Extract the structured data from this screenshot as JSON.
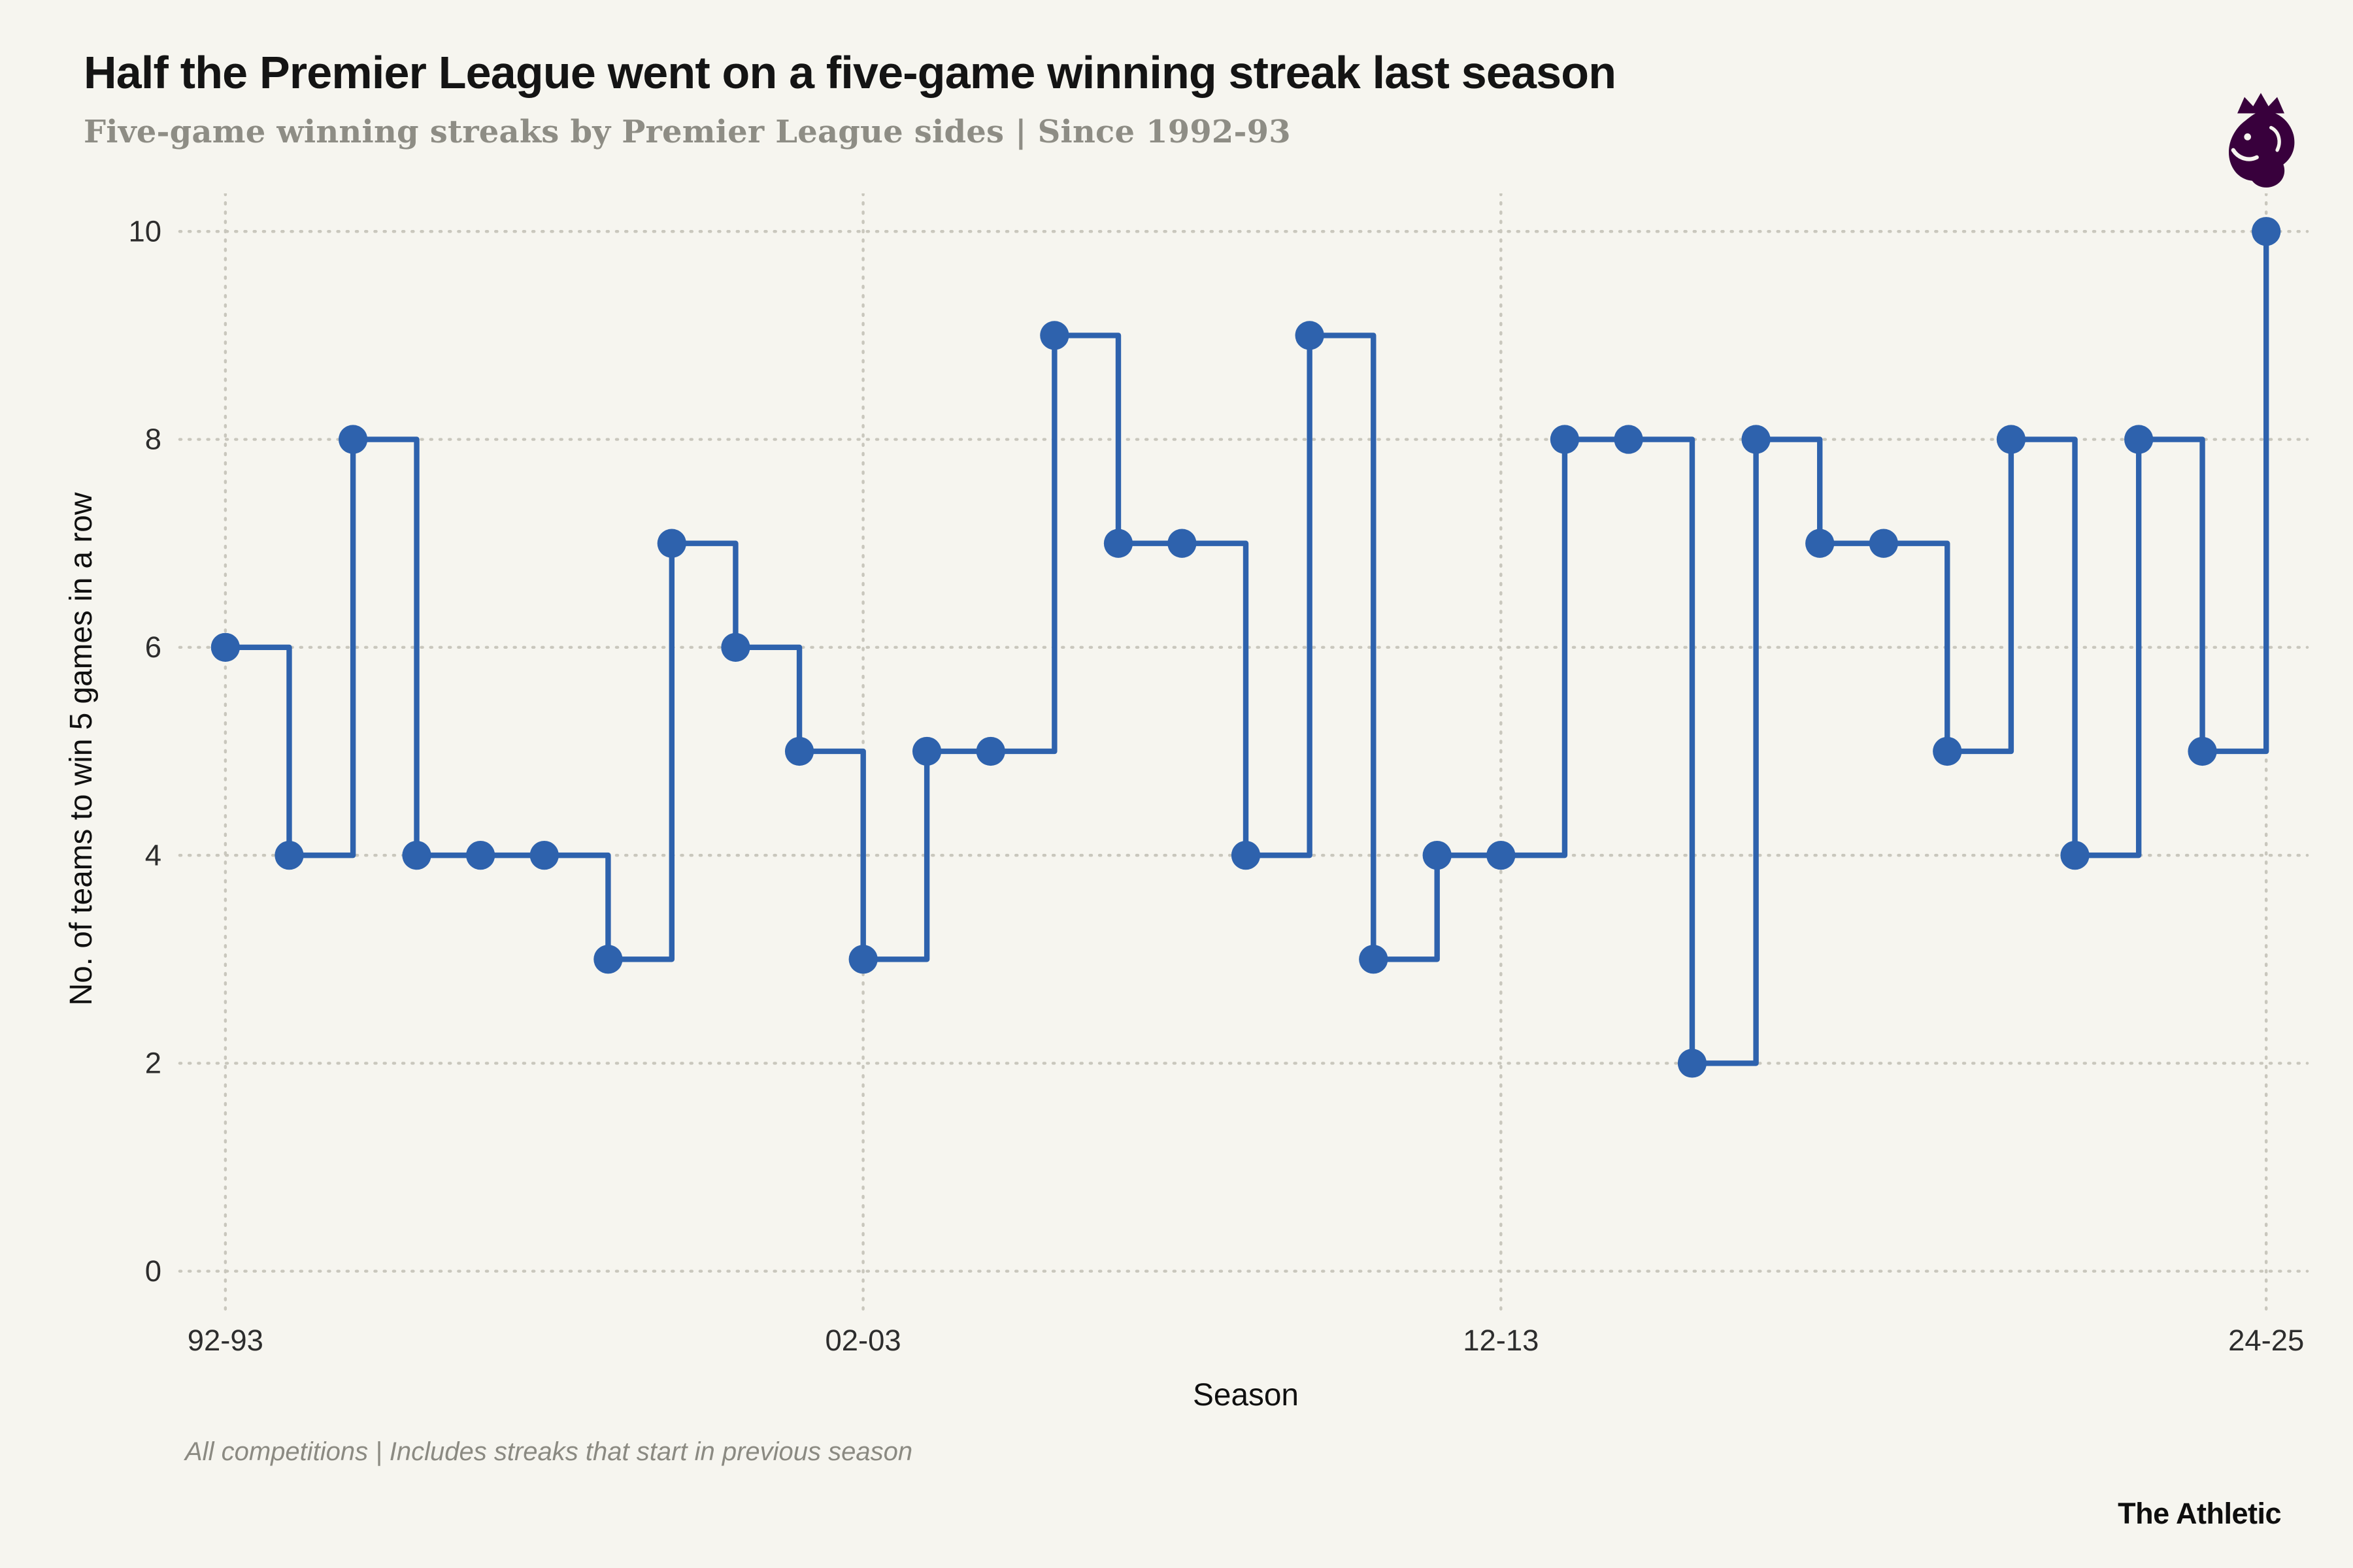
{
  "header": {
    "title": "Half the Premier League went on a five-game winning streak last season",
    "subtitle": "Five-game winning streaks by Premier League sides | Since 1992-93"
  },
  "colors": {
    "accent_blue": "#2e62ad",
    "pl_purple": "#38003c",
    "background": "#f6f5ef",
    "gridline_gray": "#c9c7bd",
    "subtitle_gray": "#8e8d85"
  },
  "chart_data": {
    "type": "line",
    "line_style": "step-after",
    "title": "Half the Premier League went on a five-game winning streak last season",
    "subtitle": "Five-game winning streaks by Premier League sides | Since 1992-93",
    "xlabel": "Season",
    "ylabel": "No. of teams to win 5 games in a row",
    "categories": [
      "92-93",
      "93-94",
      "94-95",
      "95-96",
      "96-97",
      "97-98",
      "98-99",
      "99-00",
      "00-01",
      "01-02",
      "02-03",
      "03-04",
      "04-05",
      "05-06",
      "06-07",
      "07-08",
      "08-09",
      "09-10",
      "10-11",
      "11-12",
      "12-13",
      "13-14",
      "14-15",
      "15-16",
      "16-17",
      "17-18",
      "18-19",
      "19-20",
      "20-21",
      "21-22",
      "22-23",
      "23-24",
      "24-25"
    ],
    "values": [
      6,
      4,
      8,
      4,
      4,
      4,
      3,
      7,
      6,
      5,
      3,
      5,
      5,
      9,
      7,
      7,
      4,
      9,
      3,
      4,
      4,
      8,
      8,
      2,
      8,
      7,
      7,
      5,
      8,
      4,
      8,
      5,
      10
    ],
    "yticks": [
      0,
      2,
      4,
      6,
      8,
      10
    ],
    "xtick_labels": [
      "92-93",
      "02-03",
      "12-13",
      "24-25"
    ],
    "ylim": [
      0,
      10
    ],
    "grid": "dotted",
    "legend": "none",
    "marker": "circle",
    "line_color": "#2e62ad",
    "marker_color": "#2e62ad"
  },
  "footer": {
    "note": "All competitions | Includes streaks that start in previous season",
    "brand": "The Athletic"
  }
}
